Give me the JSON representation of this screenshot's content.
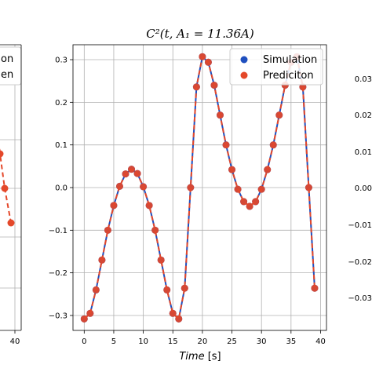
{
  "chart_data": {
    "type": "line",
    "title": "C²(t, A₁ = 11.36A)",
    "xlabel_italic": "Time",
    "xlabel_unit": " [s]",
    "ylabel": "",
    "xlim": [
      -1.9,
      41
    ],
    "ylim": [
      -0.335,
      0.335
    ],
    "grid": true,
    "legend_placement": "top-right",
    "xticks": [
      0,
      5,
      10,
      15,
      20,
      25,
      30,
      35,
      40
    ],
    "yticks": [
      -0.3,
      -0.2,
      -0.1,
      0.0,
      0.1,
      0.2,
      0.3
    ],
    "ytick_labels": [
      "−0.3",
      "−0.2",
      "−0.1",
      "0.0",
      "0.1",
      "0.2",
      "0.3"
    ],
    "x": [
      0,
      1,
      2,
      3,
      4,
      5,
      6,
      7,
      8,
      9,
      10,
      11,
      12,
      13,
      14,
      15,
      16,
      17,
      18,
      19,
      20,
      21,
      22,
      23,
      24,
      25,
      26,
      27,
      28,
      29,
      30,
      31,
      32,
      33,
      34,
      35,
      36,
      37,
      38,
      39
    ],
    "series": [
      {
        "name": "Simulation",
        "color": "#1f4fbf",
        "style": "line-marker",
        "values": [
          -0.308,
          -0.295,
          -0.24,
          -0.17,
          -0.1,
          -0.042,
          0.003,
          0.032,
          0.043,
          0.033,
          0.002,
          -0.042,
          -0.1,
          -0.17,
          -0.24,
          -0.295,
          -0.308,
          -0.236,
          0.0,
          0.236,
          0.307,
          0.294,
          0.24,
          0.17,
          0.1,
          0.042,
          -0.004,
          -0.033,
          -0.044,
          -0.033,
          -0.004,
          0.042,
          0.1,
          0.17,
          0.24,
          0.294,
          0.307,
          0.236,
          0.0,
          -0.236
        ]
      },
      {
        "name": "Prediciton",
        "color": "#e4482a",
        "style": "dashed-marker",
        "values": [
          -0.308,
          -0.295,
          -0.24,
          -0.17,
          -0.1,
          -0.042,
          0.003,
          0.032,
          0.043,
          0.033,
          0.002,
          -0.042,
          -0.1,
          -0.17,
          -0.24,
          -0.295,
          -0.308,
          -0.236,
          0.0,
          0.236,
          0.307,
          0.294,
          0.24,
          0.17,
          0.1,
          0.042,
          -0.004,
          -0.033,
          -0.044,
          -0.033,
          -0.004,
          0.042,
          0.1,
          0.17,
          0.24,
          0.294,
          0.307,
          0.236,
          0.0,
          -0.236
        ]
      }
    ]
  },
  "left_panel": {
    "legend_fragments": [
      "on",
      "en"
    ],
    "xtick": "40",
    "color": "#e4482a"
  },
  "right_panel": {
    "ytick_labels": [
      "0.03",
      "0.02",
      "0.01",
      "0.00",
      "−0.01",
      "−0.02",
      "−0.03"
    ]
  }
}
